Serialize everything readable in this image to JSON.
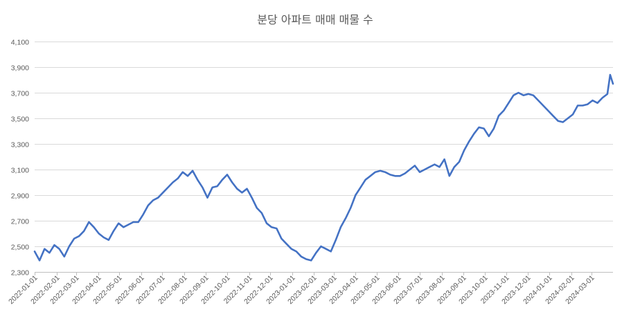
{
  "chart_data": {
    "type": "line",
    "title": "분당 아파트 매매 매물 수",
    "xlabel": "",
    "ylabel": "",
    "x_range": [
      "2022-01-01",
      "2024-03-31"
    ],
    "ylim": [
      2300,
      4100
    ],
    "yticks": [
      2300,
      2500,
      2700,
      2900,
      3100,
      3300,
      3500,
      3700,
      3900,
      4100
    ],
    "ytick_labels": [
      "2,300",
      "2,500",
      "2,700",
      "2,900",
      "3,100",
      "3,300",
      "3,500",
      "3,700",
      "3,900",
      "4,100"
    ],
    "xticks": [
      "2022-01-01",
      "2022-02-01",
      "2022-03-01",
      "2022-04-01",
      "2022-05-01",
      "2022-06-01",
      "2022-07-01",
      "2022-08-01",
      "2022-09-01",
      "2022-10-01",
      "2022-11-01",
      "2022-12-01",
      "2023-01-01",
      "2023-02-01",
      "2023-03-01",
      "2023-04-01",
      "2023-05-01",
      "2023-06-01",
      "2023-07-01",
      "2023-08-01",
      "2023-09-01",
      "2023-10-01",
      "2023-11-01",
      "2023-12-01",
      "2024-01-01",
      "2024-02-01",
      "2024-03-01"
    ],
    "grid": true,
    "legend": "none",
    "color": "#4472c4",
    "series": [
      {
        "name": "",
        "x": [
          "2022-01-01",
          "2022-01-08",
          "2022-01-15",
          "2022-01-22",
          "2022-01-29",
          "2022-02-05",
          "2022-02-12",
          "2022-02-19",
          "2022-02-26",
          "2022-03-05",
          "2022-03-12",
          "2022-03-19",
          "2022-03-26",
          "2022-04-02",
          "2022-04-09",
          "2022-04-16",
          "2022-04-23",
          "2022-04-30",
          "2022-05-07",
          "2022-05-14",
          "2022-05-21",
          "2022-05-28",
          "2022-06-04",
          "2022-06-11",
          "2022-06-18",
          "2022-06-25",
          "2022-07-02",
          "2022-07-09",
          "2022-07-16",
          "2022-07-23",
          "2022-07-30",
          "2022-08-06",
          "2022-08-13",
          "2022-08-20",
          "2022-08-27",
          "2022-09-03",
          "2022-09-10",
          "2022-09-17",
          "2022-09-24",
          "2022-10-01",
          "2022-10-08",
          "2022-10-15",
          "2022-10-22",
          "2022-10-29",
          "2022-11-05",
          "2022-11-12",
          "2022-11-19",
          "2022-11-26",
          "2022-12-03",
          "2022-12-10",
          "2022-12-17",
          "2022-12-24",
          "2022-12-31",
          "2023-01-07",
          "2023-01-14",
          "2023-01-21",
          "2023-01-28",
          "2023-02-04",
          "2023-02-11",
          "2023-02-18",
          "2023-02-25",
          "2023-03-04",
          "2023-03-11",
          "2023-03-18",
          "2023-03-25",
          "2023-04-01",
          "2023-04-08",
          "2023-04-15",
          "2023-04-22",
          "2023-04-29",
          "2023-05-06",
          "2023-05-13",
          "2023-05-20",
          "2023-05-27",
          "2023-06-03",
          "2023-06-10",
          "2023-06-17",
          "2023-06-24",
          "2023-07-01",
          "2023-07-08",
          "2023-07-15",
          "2023-07-22",
          "2023-07-29",
          "2023-08-05",
          "2023-08-12",
          "2023-08-19",
          "2023-08-26",
          "2023-09-02",
          "2023-09-09",
          "2023-09-16",
          "2023-09-23",
          "2023-09-30",
          "2023-10-07",
          "2023-10-14",
          "2023-10-21",
          "2023-10-28",
          "2023-11-04",
          "2023-11-11",
          "2023-11-18",
          "2023-11-25",
          "2023-12-02",
          "2023-12-09",
          "2023-12-16",
          "2023-12-23",
          "2023-12-30",
          "2024-01-06",
          "2024-01-13",
          "2024-01-20",
          "2024-01-27",
          "2024-02-03",
          "2024-02-10",
          "2024-02-17",
          "2024-02-24",
          "2024-03-02",
          "2024-03-09",
          "2024-03-16",
          "2024-03-23",
          "2024-03-27",
          "2024-03-31"
        ],
        "values": [
          2460,
          2390,
          2480,
          2450,
          2510,
          2480,
          2420,
          2500,
          2560,
          2580,
          2620,
          2690,
          2650,
          2600,
          2570,
          2550,
          2620,
          2680,
          2650,
          2670,
          2690,
          2690,
          2750,
          2820,
          2860,
          2880,
          2920,
          2960,
          3000,
          3030,
          3080,
          3050,
          3090,
          3020,
          2960,
          2880,
          2960,
          2970,
          3020,
          3060,
          3000,
          2950,
          2920,
          2950,
          2880,
          2800,
          2760,
          2680,
          2650,
          2640,
          2560,
          2520,
          2480,
          2460,
          2420,
          2400,
          2390,
          2450,
          2500,
          2480,
          2460,
          2550,
          2650,
          2720,
          2800,
          2900,
          2960,
          3020,
          3050,
          3080,
          3090,
          3080,
          3060,
          3050,
          3050,
          3070,
          3100,
          3130,
          3080,
          3100,
          3120,
          3140,
          3120,
          3180,
          3050,
          3120,
          3160,
          3250,
          3320,
          3380,
          3430,
          3420,
          3360,
          3420,
          3520,
          3560,
          3620,
          3680,
          3700,
          3680,
          3690,
          3680,
          3640,
          3600,
          3560,
          3520,
          3480,
          3470,
          3500,
          3530,
          3600,
          3600,
          3610,
          3640,
          3620,
          3660,
          3690,
          3840,
          3770
        ]
      }
    ]
  }
}
